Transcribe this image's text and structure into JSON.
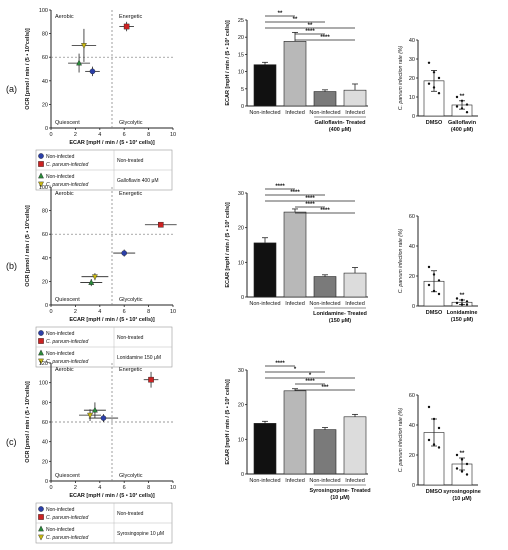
{
  "colors": {
    "noninf_untreated": "#2b3fa8",
    "inf_untreated": "#cc2222",
    "noninf_treated": "#2a8a3a",
    "inf_treated": "#c9b814",
    "bar_black": "#111111",
    "bar_lightgray": "#b8b8b8",
    "bar_darkgray": "#7a7a7a",
    "bar_paler": "#dcdcdc"
  },
  "panels": [
    {
      "label": "(a)",
      "quadrants": {
        "top_left": "Aerobic",
        "top_right": "Energetic",
        "bottom_left": "Quiescent",
        "bottom_right": "Glycolytic"
      },
      "legend": {
        "noninf": "Non-infected",
        "inf": "C. parvum-infected",
        "untreated_label": "Non-treated",
        "treated_label": "Galloflavin 400 μM"
      },
      "bar_group_label": "Galloflavin- Treated",
      "bar_group_sub": "(400 μM)",
      "dot_treat_label": "Galloflavin",
      "dot_treat_sub": "(400 μM)"
    },
    {
      "label": "(b)",
      "quadrants": {
        "top_left": "Aerobic",
        "top_right": "Energetic",
        "bottom_left": "Quiescent",
        "bottom_right": "Glycolytic"
      },
      "legend": {
        "noninf": "Non-infected",
        "inf": "C. parvum-infected",
        "untreated_label": "Non-treated",
        "treated_label": "Lonidamine 150 μM"
      },
      "bar_group_label": "Lonidamine- Treated",
      "bar_group_sub": "(150 μM)",
      "dot_treat_label": "Lonidamine",
      "dot_treat_sub": "(150 μM)"
    },
    {
      "label": "(c)",
      "quadrants": {
        "top_left": "Aerobic",
        "top_right": "Energetic",
        "bottom_left": "Quiescent",
        "bottom_right": "Glycolytic"
      },
      "legend": {
        "noninf": "Non-infected",
        "inf": "C. parvum-infected",
        "untreated_label": "Non-treated",
        "treated_label": "Syrosingopine 10 μM"
      },
      "bar_group_label": "Syrosingopine- Treated",
      "bar_group_sub": "(10 μM)",
      "dot_treat_label": "syrosingopine",
      "dot_treat_sub": "(10 μM)"
    }
  ],
  "shared": {
    "scatter_xlabel": "ECAR [mpH / min / (5 • 10³ cells)]",
    "scatter_ylabel": "OCR [pmol / min / (5 • 10³cells)]",
    "bar_ylabel": "ECAR [mpH / min / (5 • 10³ cells)]",
    "dot_ylabel": "C. parvum infection rate (%)",
    "bar_categories": [
      "Non-infected",
      "Infected",
      "Non-infected",
      "Infected"
    ],
    "dot_categories_first": "DMSO"
  },
  "chart_data": [
    {
      "type": "scatter",
      "panel": "a",
      "xlim": [
        0,
        10
      ],
      "ylim": [
        0,
        100
      ],
      "xticks": [
        0,
        2,
        4,
        6,
        8,
        10
      ],
      "yticks": [
        0,
        20,
        40,
        60,
        80,
        100
      ],
      "xlabel": "ECAR [mpH / min / (5 • 10³ cells)]",
      "ylabel": "OCR [pmol / min / (5 • 10³cells)]",
      "ref_lines": {
        "x": 5,
        "y": 60
      },
      "points": [
        {
          "series": "Non-infected, Non-treated",
          "x": 3.4,
          "y": 48,
          "xerr": 0.6,
          "yerr": 4,
          "marker": "circle"
        },
        {
          "series": "C. parvum-infected, Non-treated",
          "x": 6.2,
          "y": 86,
          "xerr": 0.6,
          "yerr": 4,
          "marker": "square"
        },
        {
          "series": "Non-infected, Galloflavin 400 μM",
          "x": 2.3,
          "y": 55,
          "xerr": 0.9,
          "yerr": 8,
          "marker": "triangle-up"
        },
        {
          "series": "C. parvum-infected, Galloflavin 400 μM",
          "x": 2.7,
          "y": 70,
          "xerr": 1.0,
          "yerr": 14,
          "marker": "triangle-down"
        }
      ]
    },
    {
      "type": "bar",
      "panel": "a",
      "ylim": [
        0,
        25
      ],
      "yticks": [
        0,
        5,
        10,
        15,
        20,
        25
      ],
      "ylabel": "ECAR [mpH / min / (5 • 10³ cells)]",
      "categories": [
        "Non-infected",
        "Infected",
        "Non-infected",
        "Infected"
      ],
      "values": [
        12.0,
        18.8,
        4.2,
        4.6
      ],
      "errors": [
        0.7,
        2.6,
        0.5,
        1.8
      ],
      "significance": [
        {
          "from": 0,
          "to": 1,
          "label": "**"
        },
        {
          "from": 0,
          "to": 2,
          "label": "**"
        },
        {
          "from": 0,
          "to": 3,
          "label": "**"
        },
        {
          "from": 1,
          "to": 2,
          "label": "****"
        },
        {
          "from": 1,
          "to": 3,
          "label": "****"
        }
      ]
    },
    {
      "type": "scatter",
      "panel": "a-infection",
      "ylim": [
        0,
        40
      ],
      "yticks": [
        0,
        10,
        20,
        30,
        40
      ],
      "ylabel": "C. parvum infection rate (%)",
      "categories": [
        "DMSO",
        "Galloflavin (400 μM)"
      ],
      "means": [
        18.5,
        5.8
      ],
      "errors": [
        5.5,
        2.2
      ],
      "points": [
        [
          28,
          23,
          20,
          17,
          15,
          12
        ],
        [
          10,
          8,
          6,
          5,
          4,
          2
        ]
      ],
      "significance_labels": [
        "",
        "**"
      ]
    },
    {
      "type": "scatter",
      "panel": "b",
      "xlim": [
        0,
        10
      ],
      "ylim": [
        0,
        100
      ],
      "xticks": [
        0,
        2,
        4,
        6,
        8,
        10
      ],
      "yticks": [
        0,
        20,
        40,
        60,
        80,
        100
      ],
      "xlabel": "ECAR [mpH / min / (5 • 10³ cells)]",
      "ylabel": "OCR [pmol / min / (5 • 10³cells)]",
      "ref_lines": {
        "x": 5,
        "y": 60
      },
      "points": [
        {
          "series": "Non-infected, Non-treated",
          "x": 6.0,
          "y": 44,
          "xerr": 0.9,
          "yerr": 3,
          "marker": "circle"
        },
        {
          "series": "C. parvum-infected, Non-treated",
          "x": 9.0,
          "y": 68,
          "xerr": 1.3,
          "yerr": 2,
          "marker": "square"
        },
        {
          "series": "Non-infected, Lonidamine 150 μM",
          "x": 3.3,
          "y": 19,
          "xerr": 0.9,
          "yerr": 3,
          "marker": "triangle-up"
        },
        {
          "series": "C. parvum-infected, Lonidamine 150 μM",
          "x": 3.6,
          "y": 24,
          "xerr": 1.1,
          "yerr": 3,
          "marker": "triangle-down"
        }
      ]
    },
    {
      "type": "bar",
      "panel": "b",
      "ylim": [
        0,
        30
      ],
      "yticks": [
        0,
        10,
        20,
        30
      ],
      "ylabel": "ECAR [mpH / min / (5 • 10³ cells)]",
      "categories": [
        "Non-infected",
        "Infected",
        "Non-infected",
        "Infected"
      ],
      "values": [
        15.6,
        24.5,
        5.9,
        6.9
      ],
      "errors": [
        1.5,
        0.9,
        0.5,
        1.6
      ],
      "significance": [
        {
          "from": 0,
          "to": 1,
          "label": "****"
        },
        {
          "from": 0,
          "to": 2,
          "label": "****"
        },
        {
          "from": 0,
          "to": 3,
          "label": "****"
        },
        {
          "from": 1,
          "to": 2,
          "label": "****"
        },
        {
          "from": 1,
          "to": 3,
          "label": "****"
        }
      ]
    },
    {
      "type": "scatter",
      "panel": "b-infection",
      "ylim": [
        0,
        60
      ],
      "yticks": [
        0,
        20,
        40,
        60
      ],
      "ylabel": "C. parvum infection rate (%)",
      "categories": [
        "DMSO",
        "Lonidamine (150 μM)"
      ],
      "means": [
        16.5,
        2.5
      ],
      "errors": [
        7.0,
        1.5
      ],
      "points": [
        [
          26,
          21,
          17,
          14,
          10,
          8
        ],
        [
          5,
          4,
          3,
          2,
          1,
          1
        ]
      ],
      "significance_labels": [
        "",
        "**"
      ]
    },
    {
      "type": "scatter",
      "panel": "c",
      "xlim": [
        0,
        10
      ],
      "ylim": [
        0,
        120
      ],
      "xticks": [
        0,
        2,
        4,
        6,
        8,
        10
      ],
      "yticks": [
        0,
        20,
        40,
        60,
        80,
        100,
        120
      ],
      "xlabel": "ECAR [mpH / min / (5 • 10³ cells)]",
      "ylabel": "OCR [pmol / min / (5 • 10³cells)]",
      "ref_lines": {
        "x": 5,
        "y": 60
      },
      "points": [
        {
          "series": "Non-infected, Non-treated",
          "x": 4.3,
          "y": 64,
          "xerr": 1.2,
          "yerr": 4,
          "marker": "circle"
        },
        {
          "series": "C. parvum-infected, Non-treated",
          "x": 8.2,
          "y": 103,
          "xerr": 0.6,
          "yerr": 8,
          "marker": "square"
        },
        {
          "series": "Non-infected, Syrosingopine 10 μM",
          "x": 3.6,
          "y": 72,
          "xerr": 0.9,
          "yerr": 8,
          "marker": "triangle-up"
        },
        {
          "series": "C. parvum-infected, Syrosingopine 10 μM",
          "x": 3.2,
          "y": 67,
          "xerr": 0.9,
          "yerr": 6,
          "marker": "triangle-down"
        }
      ]
    },
    {
      "type": "bar",
      "panel": "c",
      "ylim": [
        0,
        30
      ],
      "yticks": [
        0,
        10,
        20,
        30
      ],
      "ylabel": "ECAR [mpH / min / (5 • 10³ cells)]",
      "categories": [
        "Non-infected",
        "Infected",
        "Non-infected",
        "Infected"
      ],
      "values": [
        14.6,
        24.0,
        12.8,
        16.5
      ],
      "errors": [
        0.6,
        0.6,
        0.6,
        0.7
      ],
      "significance": [
        {
          "from": 0,
          "to": 1,
          "label": "****"
        },
        {
          "from": 0,
          "to": 2,
          "label": "*"
        },
        {
          "from": 0,
          "to": 3,
          "label": "*"
        },
        {
          "from": 1,
          "to": 2,
          "label": "****"
        },
        {
          "from": 1,
          "to": 3,
          "label": "***"
        }
      ]
    },
    {
      "type": "scatter",
      "panel": "c-infection",
      "ylim": [
        0,
        60
      ],
      "yticks": [
        0,
        20,
        40,
        60
      ],
      "ylabel": "C. parvum infection rate (%)",
      "categories": [
        "DMSO",
        "syrosingopine (10 μM)"
      ],
      "means": [
        35,
        14
      ],
      "errors": [
        9,
        4
      ],
      "points": [
        [
          52,
          44,
          38,
          30,
          27,
          25
        ],
        [
          20,
          17,
          14,
          11,
          9,
          7
        ]
      ],
      "significance_labels": [
        "",
        "**"
      ]
    }
  ]
}
